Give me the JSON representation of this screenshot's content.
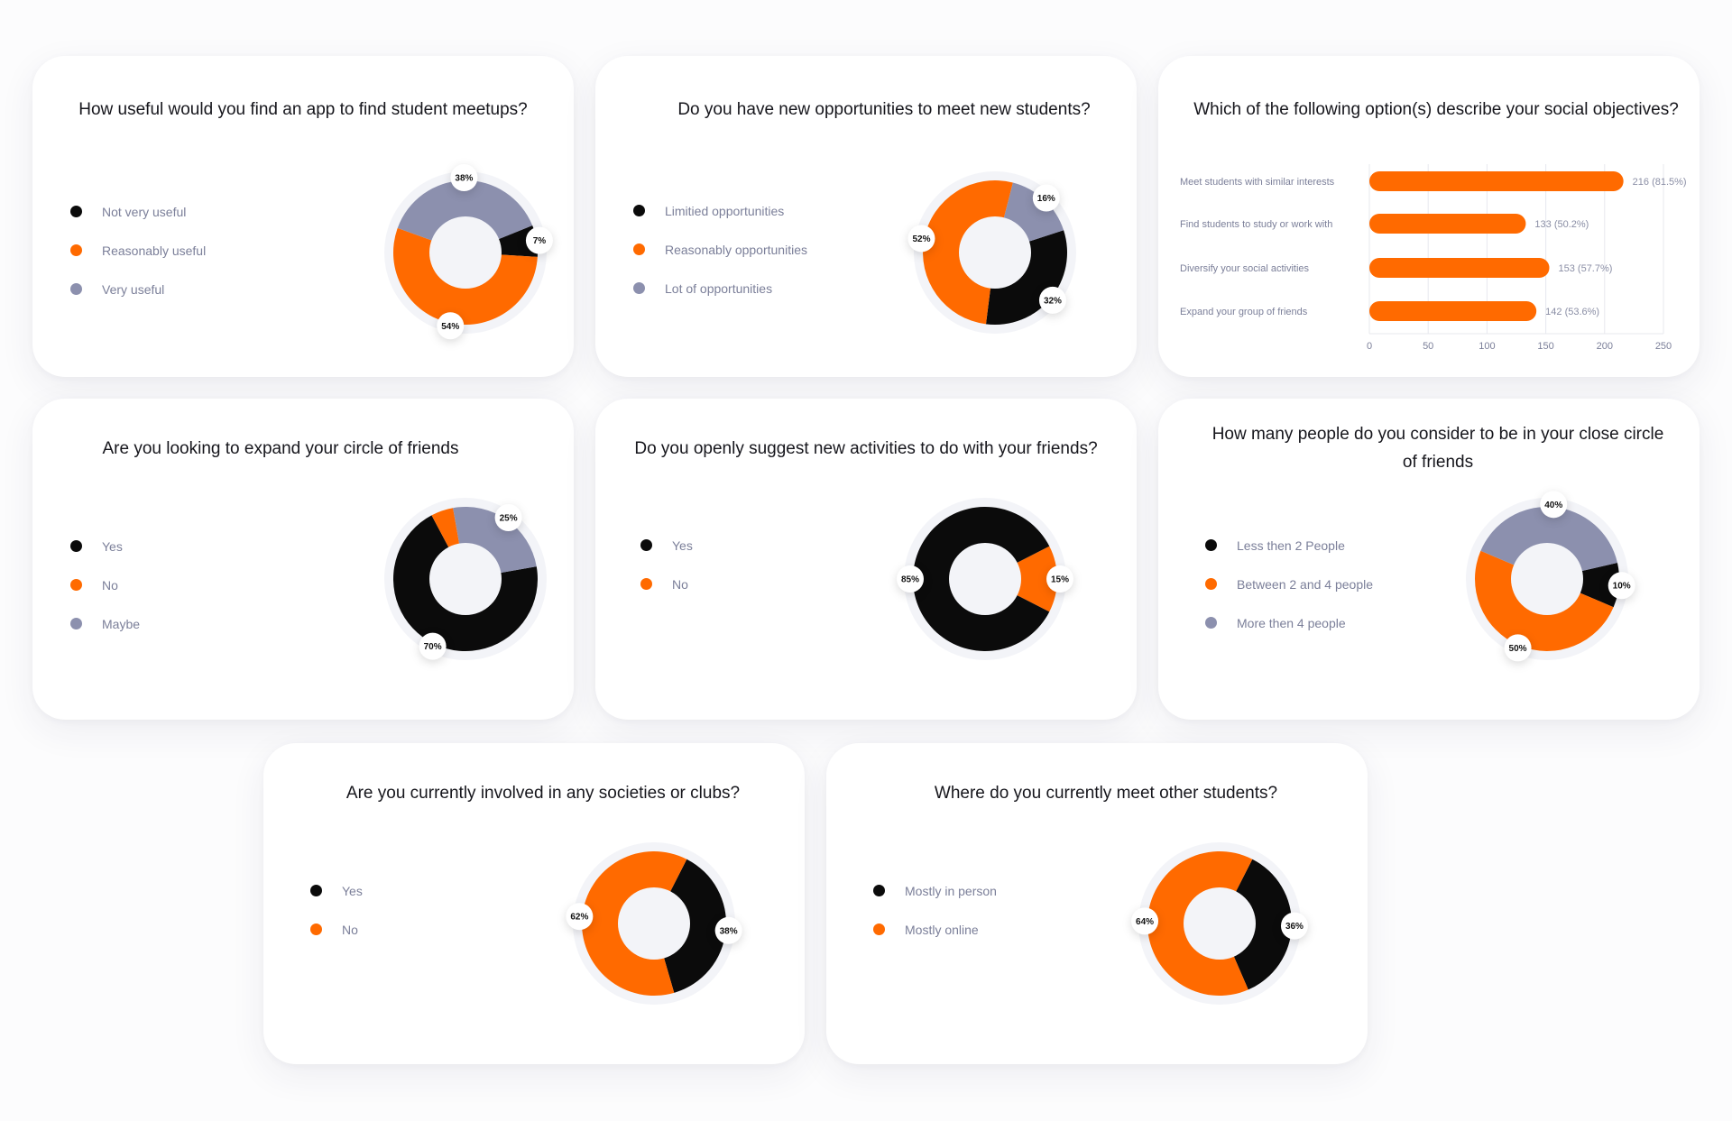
{
  "colors": {
    "black": "#0b0b0b",
    "orange": "#ff6a00",
    "gray": "#8c90ae"
  },
  "cards": [
    {
      "title": "How useful would you find an app to find student meetups?",
      "chart_data": {
        "type": "pie",
        "slices": [
          {
            "label": "Not very useful",
            "value": 7,
            "color": "black",
            "display": "7%"
          },
          {
            "label": "Reasonably useful",
            "value": 54,
            "color": "orange",
            "display": "54%"
          },
          {
            "label": "Very useful",
            "value": 38,
            "color": "gray",
            "display": "38%"
          }
        ]
      }
    },
    {
      "title": "Do you have new opportunities to meet new students?",
      "chart_data": {
        "type": "pie",
        "slices": [
          {
            "label": "Limitied opportunities",
            "value": 32,
            "color": "black",
            "display": "32%"
          },
          {
            "label": "Reasonably opportunities",
            "value": 52,
            "color": "orange",
            "display": "52%"
          },
          {
            "label": "Lot of opportunities",
            "value": 16,
            "color": "gray",
            "display": "16%"
          }
        ]
      }
    },
    {
      "title": "Which of the following option(s) describe your social objectives?",
      "chart_data": {
        "type": "bar",
        "orientation": "horizontal",
        "categories": [
          "Meet students with similar interests",
          "Find students to study or work with",
          "Diversify your social activities",
          "Expand your group of friends"
        ],
        "values": [
          216,
          133,
          153,
          142
        ],
        "value_labels": [
          "216 (81.5%)",
          "133 (50.2%)",
          "153 (57.7%)",
          "142 (53.6%)"
        ],
        "xlim": [
          0,
          250
        ],
        "xticks": [
          "0",
          "50",
          "100",
          "150",
          "200",
          "250"
        ],
        "grid": true,
        "color": "orange"
      }
    },
    {
      "title": "Are you looking to expand your circle of friends",
      "chart_data": {
        "type": "pie",
        "slices": [
          {
            "label": "Yes",
            "value": 70,
            "color": "black",
            "display": "70%"
          },
          {
            "label": "No",
            "value": 5,
            "color": "orange",
            "display": ""
          },
          {
            "label": "Maybe",
            "value": 25,
            "color": "gray",
            "display": "25%"
          }
        ]
      }
    },
    {
      "title": "Do you openly suggest new activities to do with your friends?",
      "chart_data": {
        "type": "pie",
        "slices": [
          {
            "label": "Yes",
            "value": 85,
            "color": "black",
            "display": "85%"
          },
          {
            "label": "No",
            "value": 15,
            "color": "orange",
            "display": "15%"
          }
        ]
      }
    },
    {
      "title": "How many people do you consider to be in your close circle of friends",
      "chart_data": {
        "type": "pie",
        "slices": [
          {
            "label": "Less then 2 People",
            "value": 10,
            "color": "black",
            "display": "10%"
          },
          {
            "label": "Between 2 and 4 people",
            "value": 50,
            "color": "orange",
            "display": "50%"
          },
          {
            "label": "More then 4 people",
            "value": 40,
            "color": "gray",
            "display": "40%"
          }
        ]
      }
    },
    {
      "title": "Are you currently involved in any societies or clubs?",
      "chart_data": {
        "type": "pie",
        "slices": [
          {
            "label": "Yes",
            "value": 38,
            "color": "black",
            "display": "38%"
          },
          {
            "label": "No",
            "value": 62,
            "color": "orange",
            "display": "62%"
          }
        ]
      }
    },
    {
      "title": "Where do you currently meet other students?",
      "chart_data": {
        "type": "pie",
        "slices": [
          {
            "label": "Mostly in person",
            "value": 36,
            "color": "black",
            "display": "36%"
          },
          {
            "label": "Mostly online",
            "value": 64,
            "color": "orange",
            "display": "64%"
          }
        ]
      }
    }
  ]
}
